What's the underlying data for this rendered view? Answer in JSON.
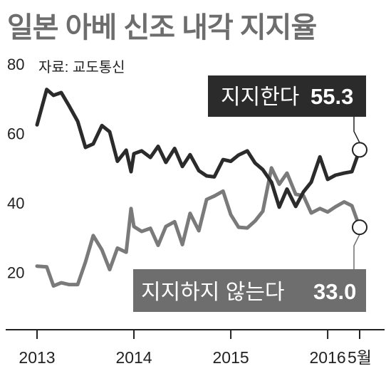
{
  "title": "일본 아베 신조 내각 지지율",
  "source": "자료: 교도통신",
  "colors": {
    "support": "#2b2b2b",
    "oppose": "#7a7a7a",
    "support_box": "#2b2b2b",
    "oppose_box": "#6e6e6e",
    "title": "#6d6d6d"
  },
  "chart_data": {
    "type": "line",
    "ylim": [
      0,
      80
    ],
    "yticks": [
      "80",
      "60",
      "40",
      "20"
    ],
    "ytick_values": [
      80,
      60,
      40,
      20
    ],
    "xlim": [
      2013.0,
      2016.4
    ],
    "xticks": [
      "2013",
      "2014",
      "2015",
      "2016",
      "5월"
    ],
    "xtick_values": [
      2013.0,
      2014.0,
      2015.0,
      2016.0,
      2016.33
    ],
    "grid": false,
    "series": [
      {
        "name": "지지한다",
        "label_value": "55.3",
        "color": "#2b2b2b",
        "x": [
          2013.0,
          2013.1,
          2013.17,
          2013.25,
          2013.33,
          2013.42,
          2013.5,
          2013.58,
          2013.67,
          2013.75,
          2013.83,
          2013.92,
          2013.97,
          2014.0,
          2014.08,
          2014.17,
          2014.25,
          2014.33,
          2014.42,
          2014.5,
          2014.58,
          2014.67,
          2014.75,
          2014.83,
          2014.92,
          2015.0,
          2015.08,
          2015.17,
          2015.25,
          2015.33,
          2015.42,
          2015.5,
          2015.58,
          2015.67,
          2015.75,
          2015.83,
          2015.92,
          2016.0,
          2016.08,
          2016.17,
          2016.25,
          2016.33
        ],
        "y": [
          62.5,
          72.7,
          71.0,
          71.8,
          68.0,
          63.5,
          56.0,
          57.0,
          62.3,
          60.5,
          52.0,
          55.2,
          49.0,
          54.2,
          55.0,
          53.1,
          56.3,
          51.7,
          55.7,
          50.5,
          53.9,
          49.3,
          47.8,
          47.5,
          52.5,
          52.0,
          53.8,
          55.0,
          51.5,
          49.6,
          46.0,
          38.8,
          44.0,
          39.0,
          43.2,
          46.0,
          53.3,
          46.8,
          48.0,
          48.6,
          49.0,
          55.3
        ]
      },
      {
        "name": "지지하지 않는다",
        "label_value": "33.0",
        "color": "#7a7a7a",
        "x": [
          2013.0,
          2013.1,
          2013.17,
          2013.25,
          2013.33,
          2013.42,
          2013.5,
          2013.58,
          2013.67,
          2013.75,
          2013.83,
          2013.92,
          2013.97,
          2014.0,
          2014.08,
          2014.17,
          2014.25,
          2014.33,
          2014.42,
          2014.5,
          2014.58,
          2014.67,
          2014.75,
          2014.83,
          2014.92,
          2015.0,
          2015.08,
          2015.17,
          2015.25,
          2015.33,
          2015.42,
          2015.5,
          2015.58,
          2015.67,
          2015.75,
          2015.83,
          2015.92,
          2016.0,
          2016.08,
          2016.17,
          2016.25,
          2016.33
        ],
        "y": [
          21.8,
          21.6,
          16.1,
          17.0,
          16.5,
          16.5,
          23.0,
          30.6,
          26.5,
          20.8,
          27.0,
          25.8,
          38.4,
          33.2,
          31.8,
          32.7,
          27.8,
          33.2,
          34.6,
          28.0,
          37.0,
          32.0,
          41.0,
          42.0,
          43.4,
          36.6,
          33.0,
          32.8,
          34.8,
          37.6,
          50.1,
          45.4,
          48.6,
          42.5,
          42.1,
          37.1,
          38.4,
          37.4,
          38.9,
          40.3,
          39.2,
          33.0
        ]
      }
    ]
  }
}
